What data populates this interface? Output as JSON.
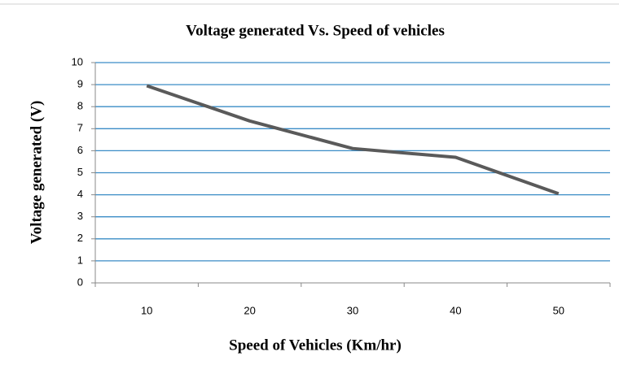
{
  "chart_data": {
    "type": "line",
    "title": "Voltage generated Vs. Speed of vehicles",
    "x_label": "Speed of Vehicles (Km/hr)",
    "y_label": "Voltage generated (V)",
    "categories": [
      "10",
      "20",
      "30",
      "40",
      "50"
    ],
    "series": [
      {
        "name": "Voltage generated",
        "color": "#5a5a5a",
        "values": [
          8.95,
          7.35,
          6.1,
          5.7,
          4.05
        ]
      }
    ],
    "ylim": [
      0,
      10
    ],
    "yticks": [
      0,
      1,
      2,
      3,
      4,
      5,
      6,
      7,
      8,
      9,
      10
    ],
    "grid": true,
    "grid_color": "#3a8cc6"
  }
}
